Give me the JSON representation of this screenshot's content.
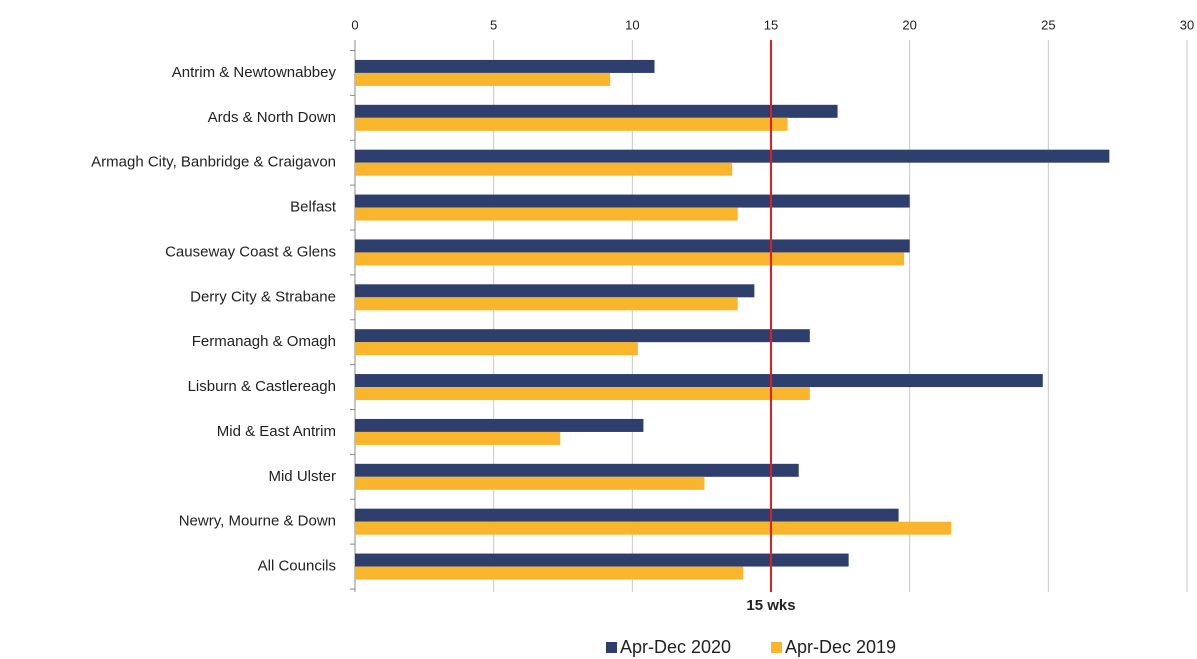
{
  "chart_data": {
    "type": "barh",
    "categories": [
      "Antrim & Newtownabbey",
      "Ards & North Down",
      "Armagh City, Banbridge & Craigavon",
      "Belfast",
      "Causeway Coast & Glens",
      "Derry City & Strabane",
      "Fermanagh & Omagh",
      "Lisburn & Castlereagh",
      "Mid & East Antrim",
      "Mid Ulster",
      "Newry, Mourne & Down",
      "All Councils"
    ],
    "series": [
      {
        "name": "Apr-Dec 2020",
        "color": "#2e3f6e",
        "values": [
          10.8,
          17.4,
          27.2,
          20.0,
          20.0,
          14.4,
          16.4,
          24.8,
          10.4,
          16.0,
          19.6,
          17.8
        ]
      },
      {
        "name": "Apr-Dec 2019",
        "color": "#f9b52c",
        "values": [
          9.2,
          15.6,
          13.6,
          13.8,
          19.8,
          13.8,
          10.2,
          16.4,
          7.4,
          12.6,
          21.5,
          14.0
        ]
      }
    ],
    "xlim": [
      0,
      30
    ],
    "xticks": [
      0,
      5,
      10,
      15,
      20,
      25,
      30
    ],
    "grid": true,
    "reference_line": {
      "value": 15,
      "label": "15 wks",
      "color": "#e02020"
    },
    "legend": "bottom"
  }
}
